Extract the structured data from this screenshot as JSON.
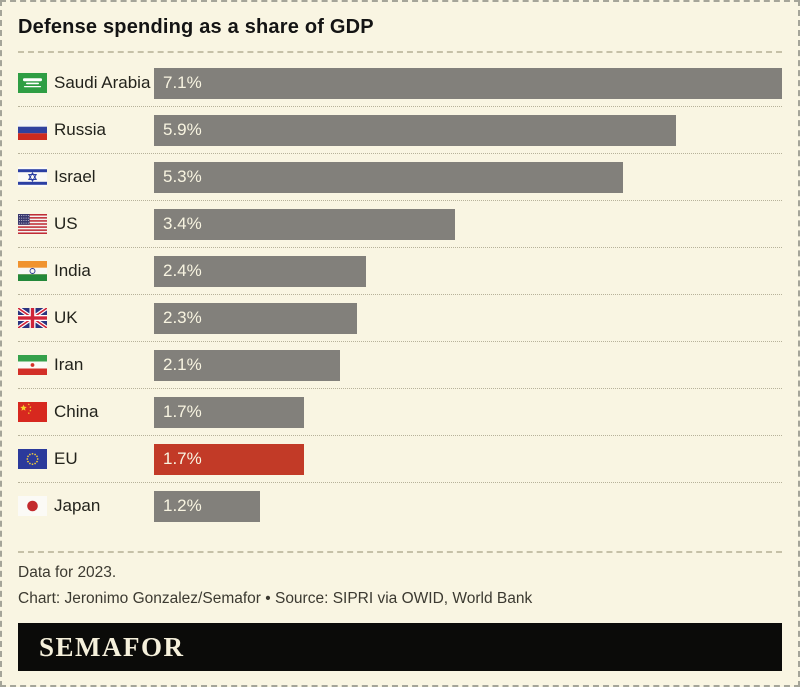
{
  "title": "Defense spending as a share of GDP",
  "chart_data": {
    "type": "bar",
    "orientation": "horizontal",
    "title": "Defense spending as a share of GDP",
    "categories": [
      "Saudi Arabia",
      "Russia",
      "Israel",
      "US",
      "India",
      "UK",
      "Iran",
      "China",
      "EU",
      "Japan"
    ],
    "values": [
      7.1,
      5.9,
      5.3,
      3.4,
      2.4,
      2.3,
      2.1,
      1.7,
      1.7,
      1.2
    ],
    "value_labels": [
      "7.1%",
      "5.9%",
      "5.3%",
      "3.4%",
      "2.4%",
      "2.3%",
      "2.1%",
      "1.7%",
      "1.7%",
      "1.2%"
    ],
    "unit": "% of GDP",
    "xlim": [
      0,
      7.1
    ],
    "grid": false,
    "legend": false,
    "value_label_position": "inside-left",
    "highlighted_category": "EU",
    "bar_color": "#82807b",
    "highlight_color": "#c23a27"
  },
  "rows": [
    {
      "country": "Saudi Arabia",
      "flag": "flag-saudi-arabia",
      "value": 7.1,
      "label": "7.1%",
      "highlight": false
    },
    {
      "country": "Russia",
      "flag": "flag-russia",
      "value": 5.9,
      "label": "5.9%",
      "highlight": false
    },
    {
      "country": "Israel",
      "flag": "flag-israel",
      "value": 5.3,
      "label": "5.3%",
      "highlight": false
    },
    {
      "country": "US",
      "flag": "flag-us",
      "value": 3.4,
      "label": "3.4%",
      "highlight": false
    },
    {
      "country": "India",
      "flag": "flag-india",
      "value": 2.4,
      "label": "2.4%",
      "highlight": false
    },
    {
      "country": "UK",
      "flag": "flag-uk",
      "value": 2.3,
      "label": "2.3%",
      "highlight": false
    },
    {
      "country": "Iran",
      "flag": "flag-iran",
      "value": 2.1,
      "label": "2.1%",
      "highlight": false
    },
    {
      "country": "China",
      "flag": "flag-china",
      "value": 1.7,
      "label": "1.7%",
      "highlight": false
    },
    {
      "country": "EU",
      "flag": "flag-eu",
      "value": 1.7,
      "label": "1.7%",
      "highlight": true
    },
    {
      "country": "Japan",
      "flag": "flag-japan",
      "value": 1.2,
      "label": "1.2%",
      "highlight": false
    }
  ],
  "footer": {
    "note": "Data for 2023.",
    "credit": "Chart: Jeronimo Gonzalez/Semafor • Source: SIPRI via OWID, World Bank"
  },
  "brand": {
    "wordmark": "SEMAFOR"
  },
  "colors": {
    "background": "#f9f5e2",
    "bar": "#82807b",
    "highlight": "#c23a27",
    "bar_value_text": "#f8f4e1",
    "banner_background": "#0b0b09",
    "banner_text": "#f5f0db"
  }
}
